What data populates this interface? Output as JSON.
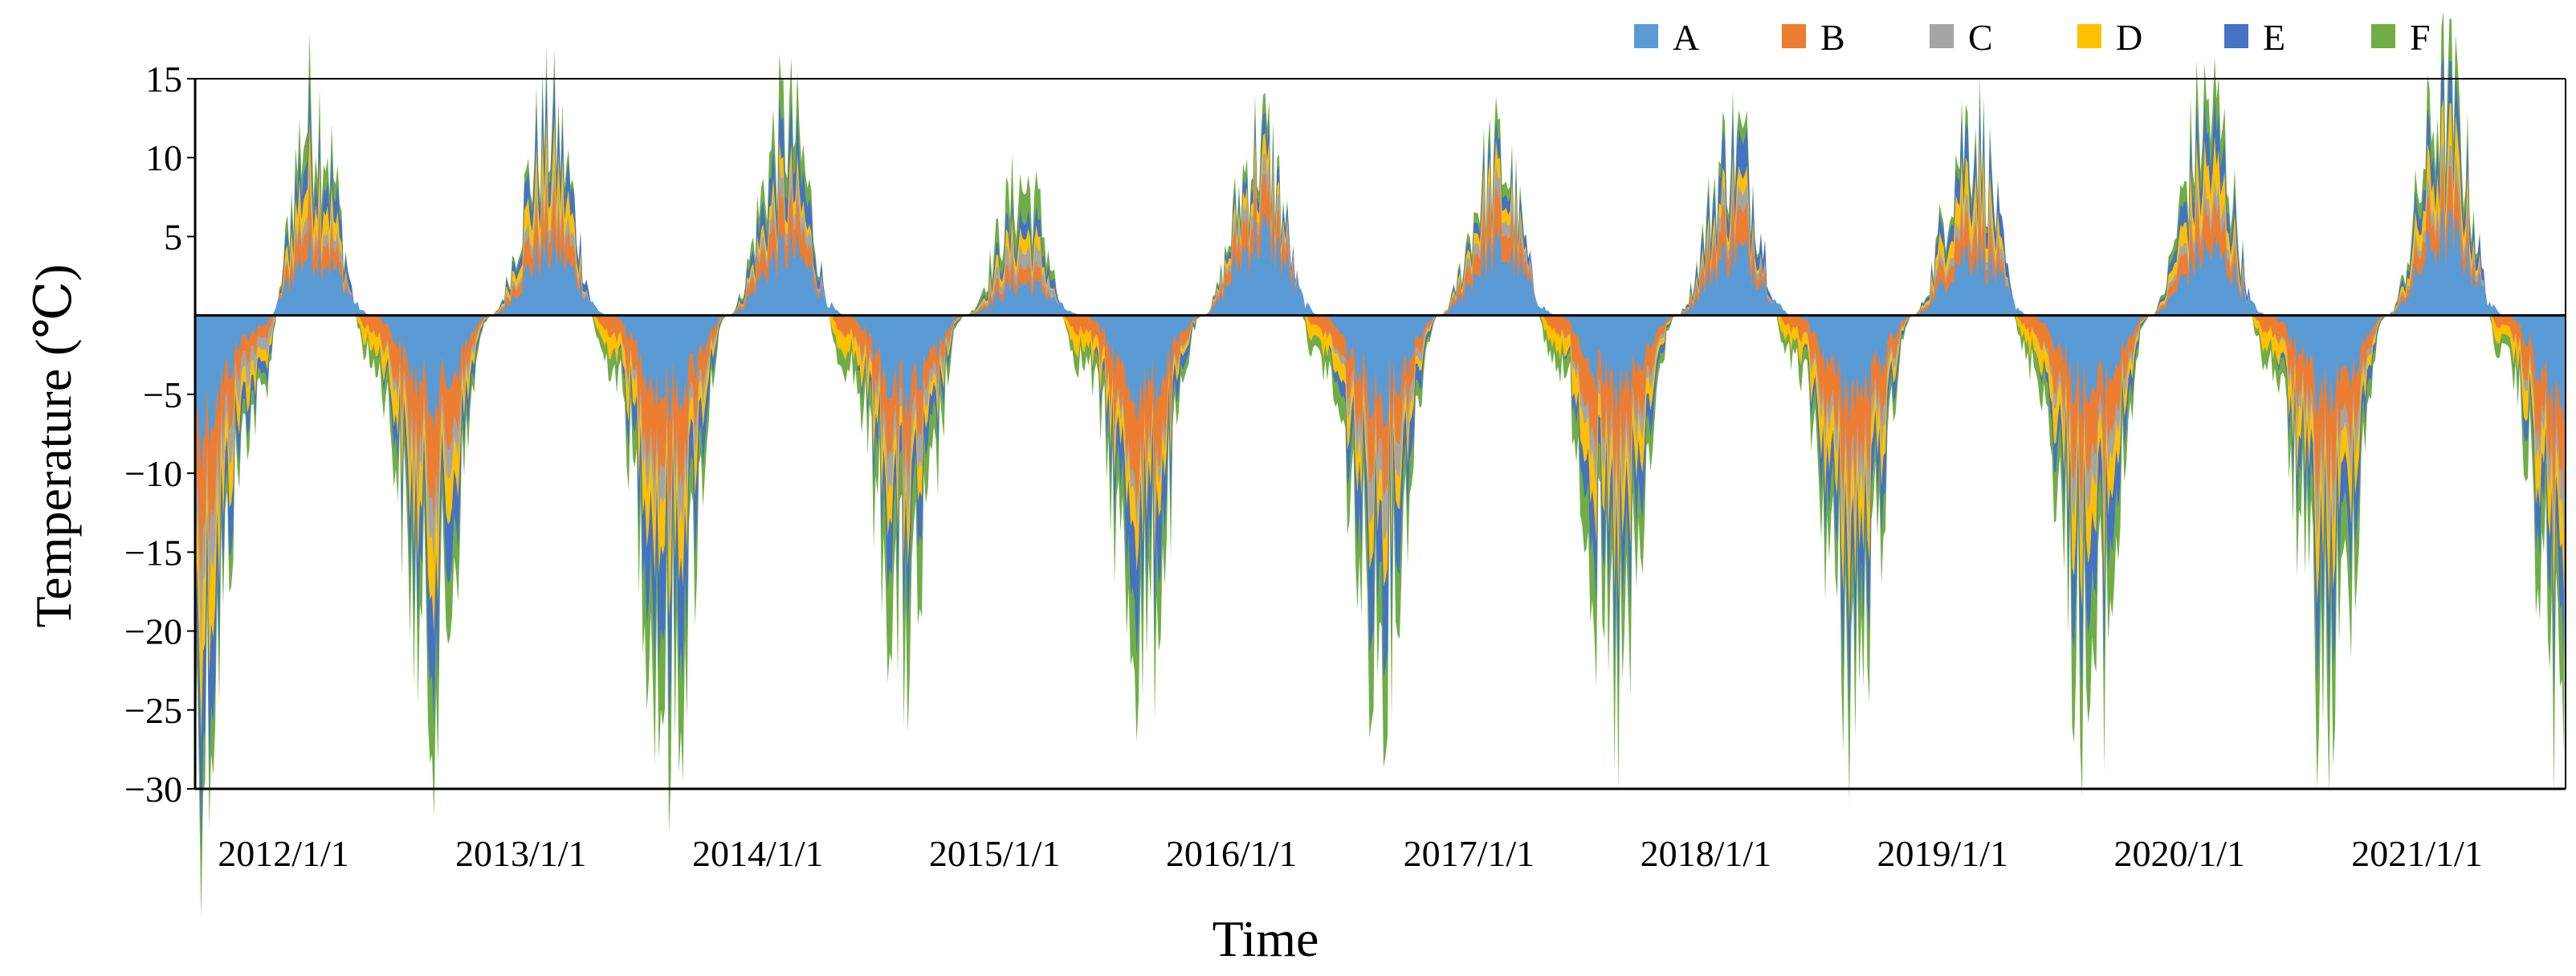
{
  "chart_data": {
    "type": "area",
    "title": "",
    "xlabel": "Time",
    "ylabel": "Temperature (℃)",
    "ylim": [
      -30,
      15
    ],
    "y_ticks": [
      "15",
      "10",
      "5",
      "-5",
      "-10",
      "-15",
      "-20",
      "-25",
      "-30"
    ],
    "y_tick_values": [
      15,
      10,
      5,
      -5,
      -10,
      -15,
      -20,
      -25,
      -30
    ],
    "x_ticks": [
      "2012/1/1",
      "2013/1/1",
      "2014/1/1",
      "2015/1/1",
      "2016/1/1",
      "2017/1/1",
      "2018/1/1",
      "2019/1/1",
      "2020/1/1",
      "2021/1/1"
    ],
    "xlim": [
      "2012/1/1",
      "2022/1/1"
    ],
    "baseline": 0,
    "grid": false,
    "legend_position": "top-right",
    "series": [
      {
        "name": "A",
        "color": "#5B9BD5"
      },
      {
        "name": "B",
        "color": "#ED7D31"
      },
      {
        "name": "C",
        "color": "#A5A5A5"
      },
      {
        "name": "D",
        "color": "#FFC000"
      },
      {
        "name": "E",
        "color": "#4472C4"
      },
      {
        "name": "F",
        "color": "#70AD47"
      }
    ],
    "x": [
      "2012/1/1",
      "2012/4/1",
      "2012/7/1",
      "2012/10/1",
      "2013/1/1",
      "2013/4/1",
      "2013/7/1",
      "2013/10/1",
      "2014/1/1",
      "2014/4/1",
      "2014/7/1",
      "2014/10/1",
      "2015/1/1",
      "2015/4/1",
      "2015/7/1",
      "2015/10/1",
      "2016/1/1",
      "2016/4/1",
      "2016/7/1",
      "2016/10/1",
      "2017/1/1",
      "2017/4/1",
      "2017/7/1",
      "2017/10/1",
      "2018/1/1",
      "2018/4/1",
      "2018/7/1",
      "2018/10/1",
      "2019/1/1",
      "2019/4/1",
      "2019/7/1",
      "2019/10/1",
      "2020/1/1",
      "2020/4/1",
      "2020/7/1",
      "2020/10/1",
      "2021/1/1",
      "2021/4/1",
      "2021/7/1",
      "2021/10/1",
      "2022/1/1"
    ],
    "stacked_totals": {
      "A": [
        -7,
        -1,
        4,
        0,
        -5,
        0,
        4,
        0,
        -5,
        0,
        4,
        0,
        -5,
        0,
        2,
        0,
        -5,
        0,
        5,
        0,
        -5,
        0,
        4,
        0,
        -5,
        0,
        4,
        0,
        -5,
        0,
        4,
        0,
        -5,
        0,
        4,
        0,
        -5,
        0,
        5,
        0,
        -6
      ],
      "B": [
        -12,
        -2,
        6,
        -1,
        -9,
        0,
        6,
        -1,
        -9,
        0,
        6,
        -1,
        -8,
        0,
        3,
        -1,
        -9,
        0,
        7,
        -1,
        -8,
        0,
        6,
        -1,
        -9,
        0,
        6,
        -1,
        -9,
        0,
        6,
        -1,
        -9,
        0,
        6,
        -1,
        -9,
        0,
        7,
        -1,
        -10
      ],
      "C": [
        -15,
        -3,
        7,
        -1,
        -11,
        0,
        7,
        -1,
        -11,
        0,
        7,
        -1,
        -10,
        0,
        4,
        -1,
        -10,
        0,
        8,
        -1,
        -10,
        0,
        7,
        -1,
        -11,
        0,
        7,
        -1,
        -11,
        0,
        7,
        -1,
        -11,
        0,
        7,
        -1,
        -11,
        0,
        8,
        -1,
        -12
      ],
      "D": [
        -19,
        -4,
        9,
        -2,
        -14,
        0,
        9,
        -2,
        -14,
        0,
        8,
        -2,
        -12,
        0,
        5,
        -2,
        -12,
        0,
        9,
        -2,
        -12,
        0,
        8,
        -2,
        -14,
        0,
        8,
        -2,
        -14,
        0,
        9,
        -2,
        -14,
        0,
        9,
        -2,
        -14,
        0,
        10,
        -2,
        -15
      ],
      "E": [
        -24,
        -5,
        11,
        -2,
        -18,
        0,
        11,
        -2,
        -19,
        0,
        10,
        -2,
        -15,
        0,
        6,
        -2,
        -16,
        0,
        10,
        -2,
        -16,
        0,
        9,
        -2,
        -18,
        0,
        10,
        -2,
        -18,
        0,
        11,
        -2,
        -18,
        0,
        11,
        -2,
        -18,
        0,
        12,
        -2,
        -19
      ],
      "F": [
        -27,
        -6,
        13,
        -3,
        -22,
        0,
        12,
        -3,
        -24,
        0,
        12,
        -3,
        -20,
        0,
        8,
        -3,
        -20,
        0,
        11,
        -3,
        -20,
        0,
        10,
        -3,
        -23,
        0,
        11,
        -3,
        -22,
        0,
        12,
        -3,
        -23,
        0,
        13,
        -3,
        -23,
        0,
        14,
        -3,
        -24
      ]
    }
  }
}
